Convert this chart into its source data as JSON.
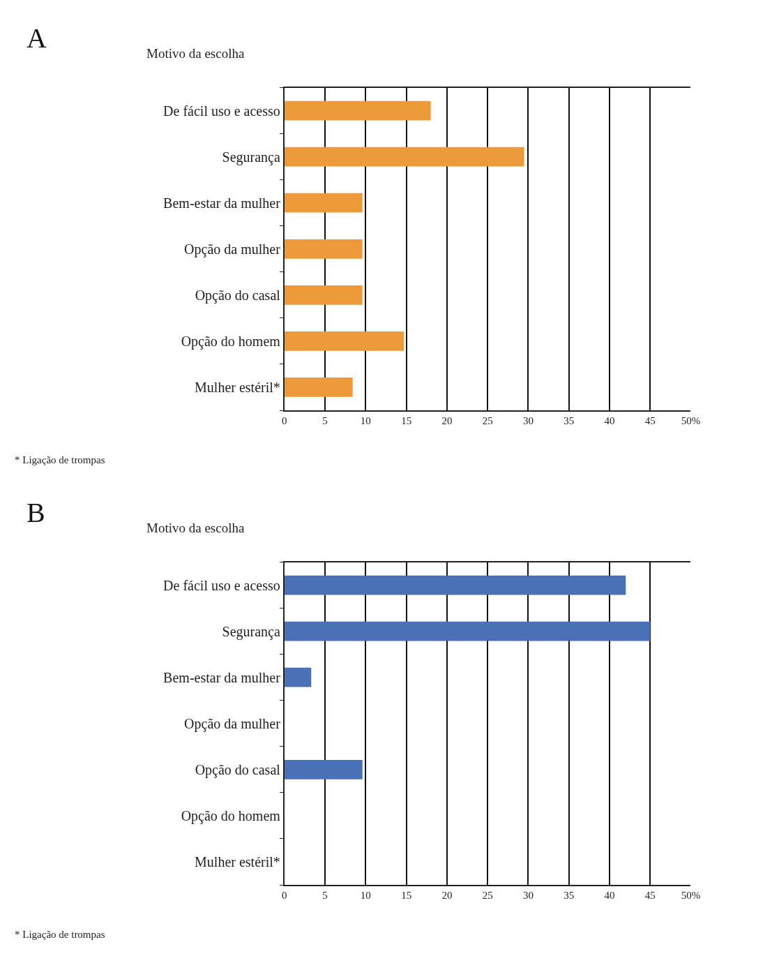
{
  "chart_data": [
    {
      "type": "bar",
      "title": "A",
      "ylabel": "Motivo da escolha",
      "orientation": "horizontal",
      "categories": [
        "De fácil uso e acesso",
        "Segurança",
        "Bem-estar da mulher",
        "Opção da mulher",
        "Opção do casal",
        "Opção do homem",
        "Mulher estéril*"
      ],
      "series": [
        {
          "color": "#ed9a3a",
          "values": [
            18,
            29.5,
            9.6,
            9.6,
            9.6,
            14.7,
            8.4
          ]
        }
      ],
      "xlim": [
        0,
        50
      ],
      "xticks": [
        0,
        5,
        10,
        15,
        20,
        25,
        30,
        35,
        40,
        45,
        {
          "value": 50,
          "label": "50%"
        }
      ],
      "grid": "x",
      "annotations": [
        "* Ligação de trompas"
      ]
    },
    {
      "type": "bar",
      "title": "B",
      "ylabel": "Motivo da escolha",
      "orientation": "horizontal",
      "categories": [
        "De fácil uso e acesso",
        "Segurança",
        "Bem-estar da mulher",
        "Opção da mulher",
        "Opção do casal",
        "Opção do homem",
        "Mulher estéril*"
      ],
      "series": [
        {
          "color": "#4a70b5",
          "values": [
            42,
            45,
            3.3,
            null,
            9.6,
            null,
            null
          ]
        }
      ],
      "xlim": [
        0,
        50
      ],
      "xticks": [
        0,
        5,
        10,
        15,
        20,
        25,
        30,
        35,
        40,
        45,
        {
          "value": 50,
          "label": "50%"
        }
      ],
      "grid": "x",
      "annotations": [
        "* Ligação de trompas"
      ]
    }
  ]
}
